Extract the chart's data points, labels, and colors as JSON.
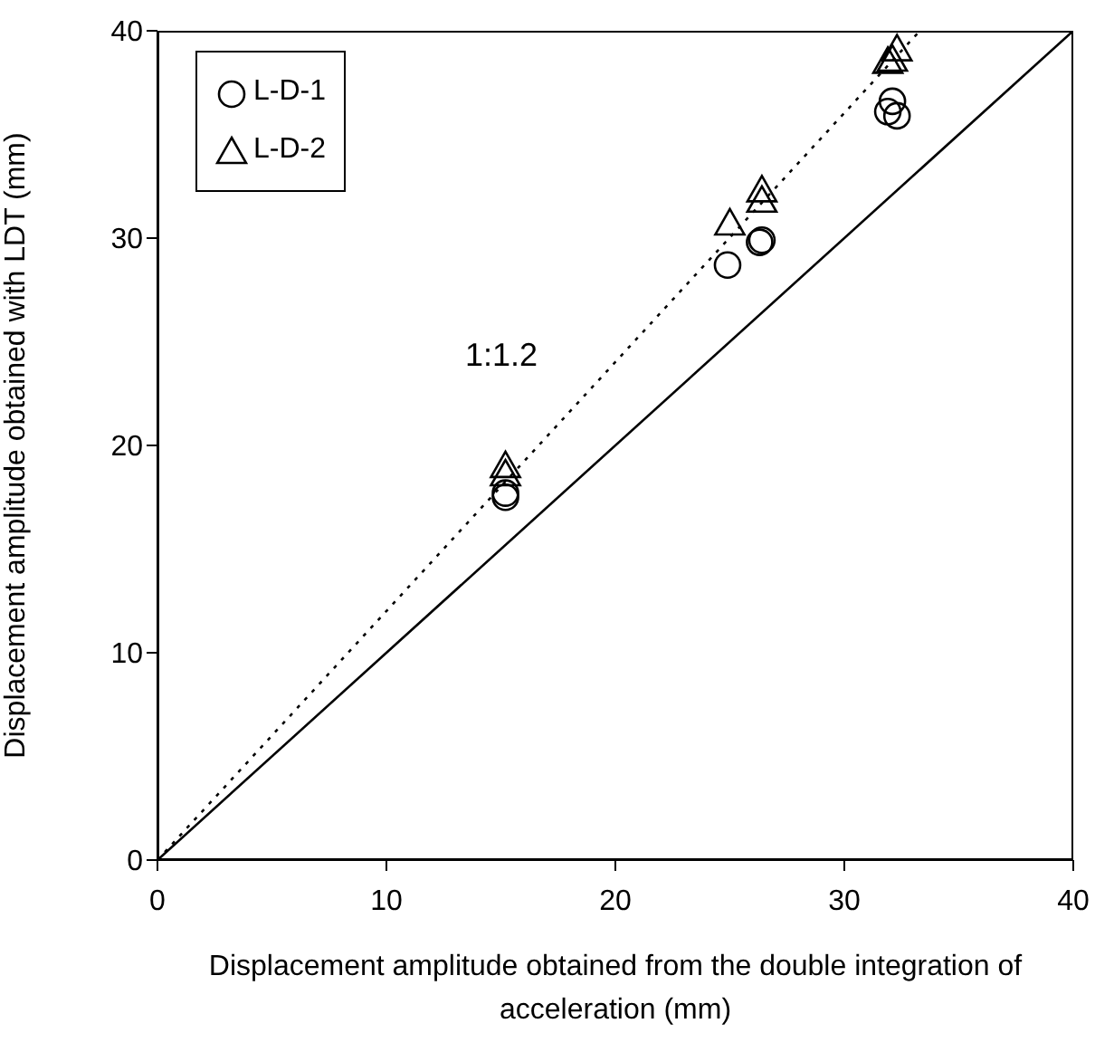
{
  "chart_data": {
    "type": "scatter",
    "xlabel": "Displacement amplitude obtained from the double integration of acceleration (mm)",
    "ylabel": "Displacement amplitude obtained with LDT (mm)",
    "xlim": [
      0,
      40
    ],
    "ylim": [
      0,
      40
    ],
    "xticks": [
      0,
      10,
      20,
      30,
      40
    ],
    "yticks": [
      0,
      10,
      20,
      30,
      40
    ],
    "legend": "top left",
    "annotations": [
      "1:1.2"
    ],
    "series": [
      {
        "name": "L-D-1",
        "color": "#000000",
        "marker": "circle",
        "x": [
          15.2,
          15.2,
          24.9,
          26.3,
          26.4,
          31.9,
          32.1,
          32.3
        ],
        "values": [
          17.5,
          17.7,
          28.7,
          29.8,
          29.9,
          36.1,
          36.6,
          35.9
        ]
      },
      {
        "name": "L-D-2",
        "color": "#000000",
        "marker": "triangle",
        "x": [
          15.2,
          15.2,
          25.0,
          26.4,
          26.4,
          31.9,
          32.1,
          32.3
        ],
        "values": [
          18.6,
          19.0,
          30.7,
          31.8,
          32.3,
          38.5,
          38.6,
          39.1
        ]
      },
      {
        "type": "line",
        "color": "#000000",
        "marker": "none",
        "line_style": "dotted",
        "x": [
          0,
          33.3
        ],
        "values": [
          0,
          40
        ]
      },
      {
        "type": "line",
        "color": "#000000",
        "marker": "none",
        "line_style": "solid",
        "x": [
          0,
          40
        ],
        "values": [
          0,
          40
        ]
      }
    ]
  }
}
